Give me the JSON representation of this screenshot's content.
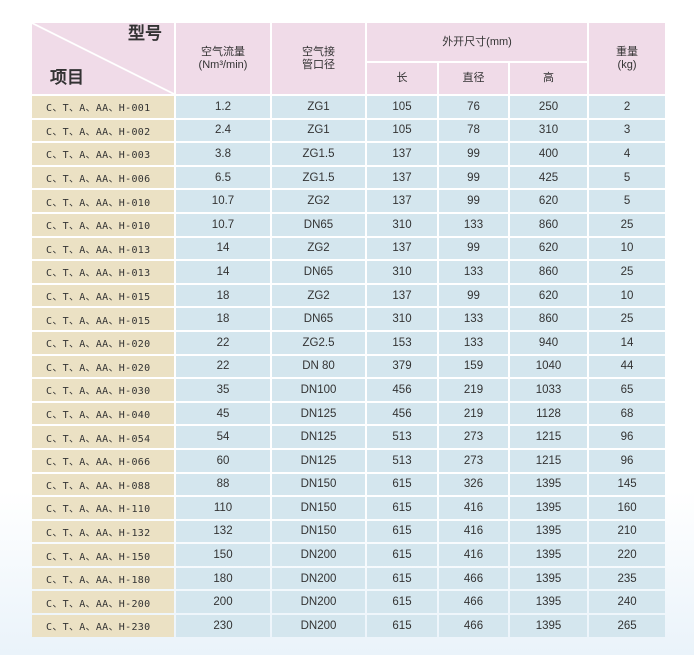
{
  "header": {
    "model_label": "型号",
    "item_label": "项目",
    "flow": "空气流量\n(Nm³/min)",
    "connection": "空气接\n管口径",
    "dimensions": "外开尺寸(mm)",
    "length": "长",
    "diameter": "直径",
    "height": "高",
    "weight": "重量\n(kg)"
  },
  "rows": [
    [
      "C、T、A、AA、H-001",
      "1.2",
      "ZG1",
      "105",
      "76",
      "250",
      "2"
    ],
    [
      "C、T、A、AA、H-002",
      "2.4",
      "ZG1",
      "105",
      "78",
      "310",
      "3"
    ],
    [
      "C、T、A、AA、H-003",
      "3.8",
      "ZG1.5",
      "137",
      "99",
      "400",
      "4"
    ],
    [
      "C、T、A、AA、H-006",
      "6.5",
      "ZG1.5",
      "137",
      "99",
      "425",
      "5"
    ],
    [
      "C、T、A、AA、H-010",
      "10.7",
      "ZG2",
      "137",
      "99",
      "620",
      "5"
    ],
    [
      "C、T、A、AA、H-010",
      "10.7",
      "DN65",
      "310",
      "133",
      "860",
      "25"
    ],
    [
      "C、T、A、AA、H-013",
      "14",
      "ZG2",
      "137",
      "99",
      "620",
      "10"
    ],
    [
      "C、T、A、AA、H-013",
      "14",
      "DN65",
      "310",
      "133",
      "860",
      "25"
    ],
    [
      "C、T、A、AA、H-015",
      "18",
      "ZG2",
      "137",
      "99",
      "620",
      "10"
    ],
    [
      "C、T、A、AA、H-015",
      "18",
      "DN65",
      "310",
      "133",
      "860",
      "25"
    ],
    [
      "C、T、A、AA、H-020",
      "22",
      "ZG2.5",
      "153",
      "133",
      "940",
      "14"
    ],
    [
      "C、T、A、AA、H-020",
      "22",
      "DN 80",
      "379",
      "159",
      "1040",
      "44"
    ],
    [
      "C、T、A、AA、H-030",
      "35",
      "DN100",
      "456",
      "219",
      "1033",
      "65"
    ],
    [
      "C、T、A、AA、H-040",
      "45",
      "DN125",
      "456",
      "219",
      "1128",
      "68"
    ],
    [
      "C、T、A、AA、H-054",
      "54",
      "DN125",
      "513",
      "273",
      "1215",
      "96"
    ],
    [
      "C、T、A、AA、H-066",
      "60",
      "DN125",
      "513",
      "273",
      "1215",
      "96"
    ],
    [
      "C、T、A、AA、H-088",
      "88",
      "DN150",
      "615",
      "326",
      "1395",
      "145"
    ],
    [
      "C、T、A、AA、H-110",
      "110",
      "DN150",
      "615",
      "416",
      "1395",
      "160"
    ],
    [
      "C、T、A、AA、H-132",
      "132",
      "DN150",
      "615",
      "416",
      "1395",
      "210"
    ],
    [
      "C、T、A、AA、H-150",
      "150",
      "DN200",
      "615",
      "416",
      "1395",
      "220"
    ],
    [
      "C、T、A、AA、H-180",
      "180",
      "DN200",
      "615",
      "466",
      "1395",
      "235"
    ],
    [
      "C、T、A、AA、H-200",
      "200",
      "DN200",
      "615",
      "466",
      "1395",
      "240"
    ],
    [
      "C、T、A、AA、H-230",
      "230",
      "DN200",
      "615",
      "466",
      "1395",
      "265"
    ]
  ]
}
